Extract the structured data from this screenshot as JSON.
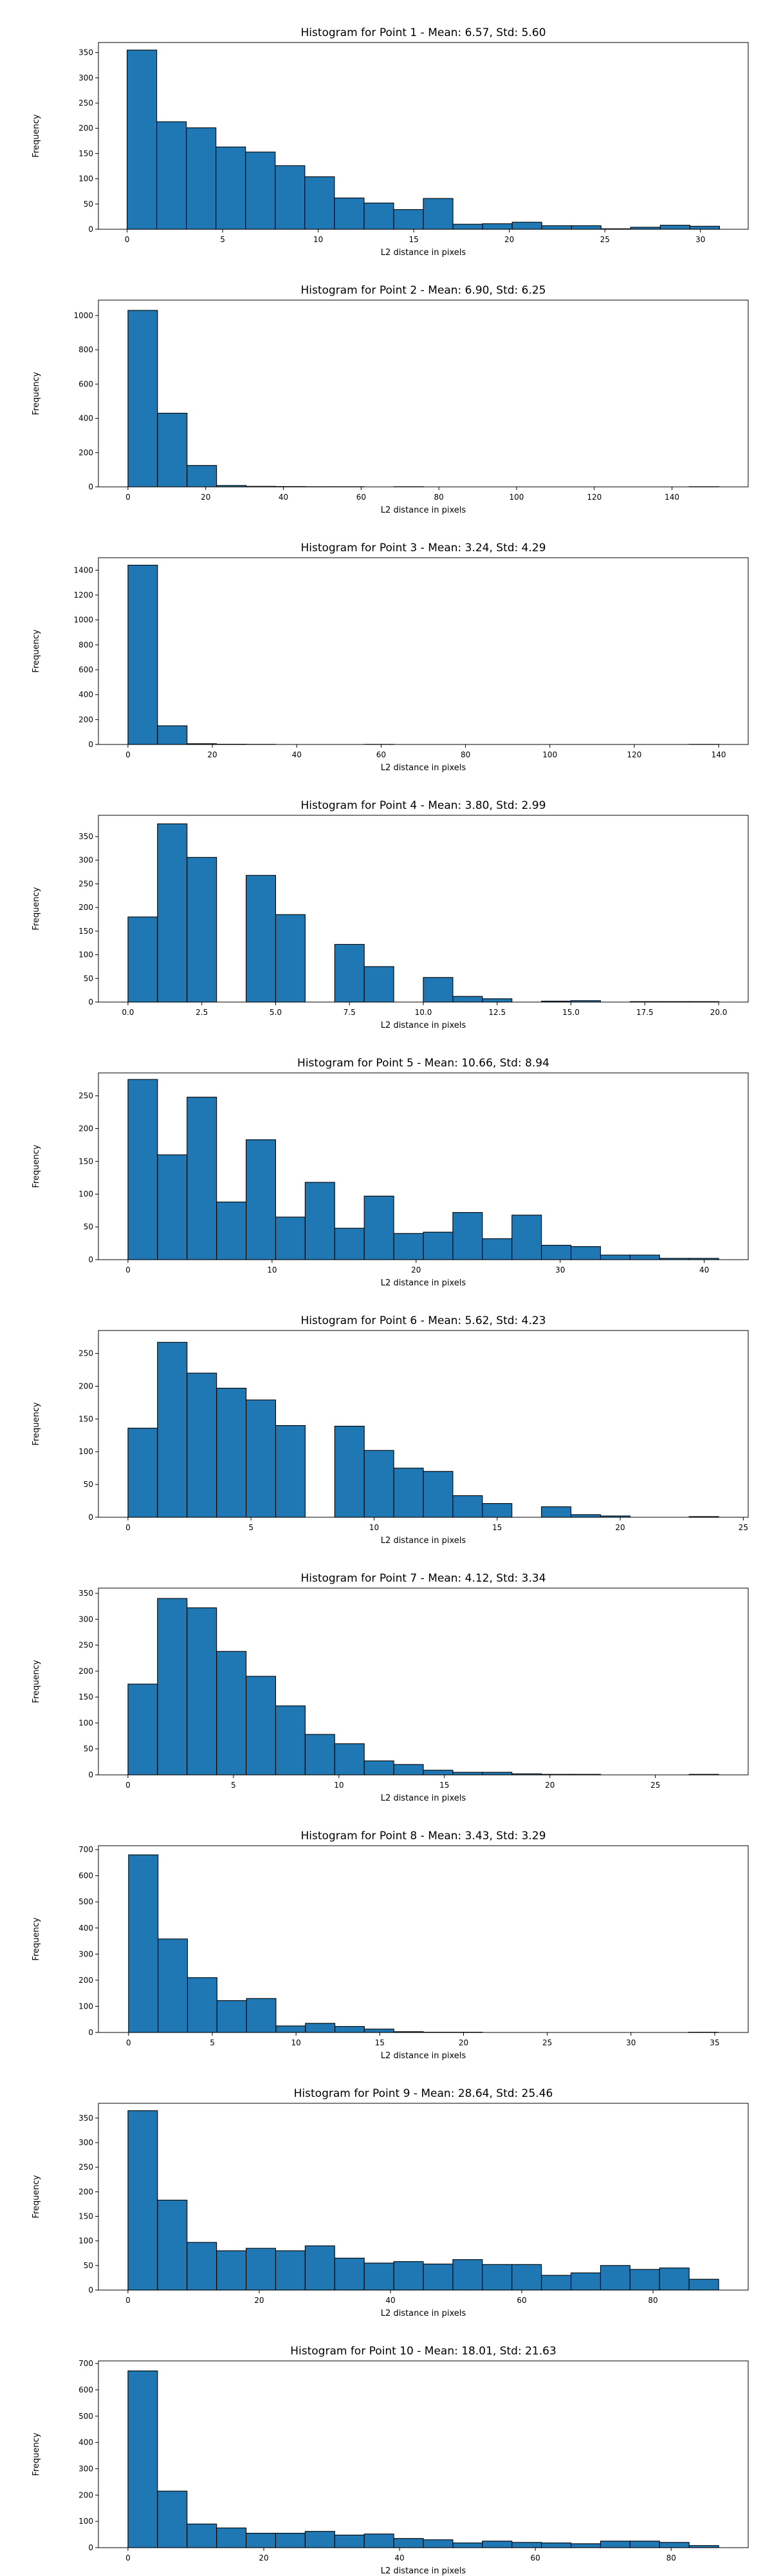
{
  "chart_data": [
    {
      "type": "bar",
      "title": "Histogram for Point 1 - Mean: 6.57, Std: 5.60",
      "xlabel": "L2 distance in pixels",
      "ylabel": "Frequency",
      "xlim": [
        -1.5,
        32.5
      ],
      "ylim": [
        0,
        370
      ],
      "xticks": [
        {
          "value": 0,
          "label": "0"
        },
        {
          "value": 5,
          "label": "5"
        },
        {
          "value": 10,
          "label": "10"
        },
        {
          "value": 15,
          "label": "15"
        },
        {
          "value": 20,
          "label": "20"
        },
        {
          "value": 25,
          "label": "25"
        },
        {
          "value": 30,
          "label": "30"
        }
      ],
      "yticks": [
        {
          "value": 0,
          "label": "0"
        },
        {
          "value": 50,
          "label": "50"
        },
        {
          "value": 100,
          "label": "100"
        },
        {
          "value": 150,
          "label": "150"
        },
        {
          "value": 200,
          "label": "200"
        },
        {
          "value": 250,
          "label": "250"
        },
        {
          "value": 300,
          "label": "300"
        },
        {
          "value": 350,
          "label": "350"
        }
      ],
      "bin_edges": [
        0,
        1.55,
        3.1,
        4.65,
        6.2,
        7.75,
        9.3,
        10.85,
        12.4,
        13.95,
        15.5,
        17.05,
        18.6,
        20.15,
        21.7,
        23.25,
        24.8,
        26.35,
        27.9,
        29.45,
        31.0
      ],
      "values": [
        355,
        213,
        201,
        163,
        153,
        126,
        104,
        62,
        52,
        39,
        61,
        10,
        11,
        14,
        7,
        7,
        1,
        4,
        8,
        6
      ],
      "color": "#1f77b4"
    },
    {
      "type": "bar",
      "title": "Histogram for Point 2 - Mean: 6.90, Std: 6.25",
      "xlabel": "L2 distance in pixels",
      "ylabel": "Frequency",
      "xlim": [
        -7.6,
        159.6
      ],
      "ylim": [
        0,
        1090
      ],
      "xticks": [
        {
          "value": 0,
          "label": "0"
        },
        {
          "value": 20,
          "label": "20"
        },
        {
          "value": 40,
          "label": "40"
        },
        {
          "value": 60,
          "label": "60"
        },
        {
          "value": 80,
          "label": "80"
        },
        {
          "value": 100,
          "label": "100"
        },
        {
          "value": 120,
          "label": "120"
        },
        {
          "value": 140,
          "label": "140"
        }
      ],
      "yticks": [
        {
          "value": 0,
          "label": "0"
        },
        {
          "value": 200,
          "label": "200"
        },
        {
          "value": 400,
          "label": "400"
        },
        {
          "value": 600,
          "label": "600"
        },
        {
          "value": 800,
          "label": "800"
        },
        {
          "value": 1000,
          "label": "1000"
        }
      ],
      "bin_edges": [
        0,
        7.6,
        15.2,
        22.8,
        30.4,
        38.0,
        45.6,
        53.2,
        60.8,
        68.4,
        76.0,
        83.6,
        91.2,
        98.8,
        106.4,
        114.0,
        121.6,
        129.2,
        136.8,
        144.4,
        152.0
      ],
      "values": [
        1030,
        430,
        125,
        8,
        3,
        2,
        1,
        1,
        0,
        1,
        0,
        0,
        0,
        0,
        0,
        0,
        0,
        0,
        0,
        1
      ],
      "color": "#1f77b4"
    },
    {
      "type": "bar",
      "title": "Histogram for Point 3 - Mean: 3.24, Std: 4.29",
      "xlabel": "L2 distance in pixels",
      "ylabel": "Frequency",
      "xlim": [
        -7.0,
        147.0
      ],
      "ylim": [
        0,
        1500
      ],
      "xticks": [
        {
          "value": 0,
          "label": "0"
        },
        {
          "value": 20,
          "label": "20"
        },
        {
          "value": 40,
          "label": "40"
        },
        {
          "value": 60,
          "label": "60"
        },
        {
          "value": 80,
          "label": "80"
        },
        {
          "value": 100,
          "label": "100"
        },
        {
          "value": 120,
          "label": "120"
        },
        {
          "value": 140,
          "label": "140"
        }
      ],
      "yticks": [
        {
          "value": 0,
          "label": "0"
        },
        {
          "value": 200,
          "label": "200"
        },
        {
          "value": 400,
          "label": "400"
        },
        {
          "value": 600,
          "label": "600"
        },
        {
          "value": 800,
          "label": "800"
        },
        {
          "value": 1000,
          "label": "1000"
        },
        {
          "value": 1200,
          "label": "1200"
        },
        {
          "value": 1400,
          "label": "1400"
        }
      ],
      "bin_edges": [
        0,
        7,
        14,
        21,
        28,
        35,
        42,
        49,
        56,
        63,
        70,
        77,
        84,
        91,
        98,
        105,
        112,
        119,
        126,
        133,
        140
      ],
      "values": [
        1440,
        150,
        6,
        2,
        1,
        0,
        0,
        0,
        1,
        0,
        0,
        0,
        0,
        0,
        0,
        0,
        0,
        0,
        0,
        1
      ],
      "color": "#1f77b4"
    },
    {
      "type": "bar",
      "title": "Histogram for Point 4 - Mean: 3.80, Std: 2.99",
      "xlabel": "L2 distance in pixels",
      "ylabel": "Frequency",
      "xlim": [
        -1.0,
        21.0
      ],
      "ylim": [
        0,
        395
      ],
      "xticks": [
        {
          "value": 0,
          "label": "0.0"
        },
        {
          "value": 2.5,
          "label": "2.5"
        },
        {
          "value": 5,
          "label": "5.0"
        },
        {
          "value": 7.5,
          "label": "7.5"
        },
        {
          "value": 10,
          "label": "10.0"
        },
        {
          "value": 12.5,
          "label": "12.5"
        },
        {
          "value": 15,
          "label": "15.0"
        },
        {
          "value": 17.5,
          "label": "17.5"
        },
        {
          "value": 20,
          "label": "20.0"
        }
      ],
      "yticks": [
        {
          "value": 0,
          "label": "0"
        },
        {
          "value": 50,
          "label": "50"
        },
        {
          "value": 100,
          "label": "100"
        },
        {
          "value": 150,
          "label": "150"
        },
        {
          "value": 200,
          "label": "200"
        },
        {
          "value": 250,
          "label": "250"
        },
        {
          "value": 300,
          "label": "300"
        },
        {
          "value": 350,
          "label": "350"
        }
      ],
      "bin_edges": [
        0,
        1,
        2,
        3,
        4,
        5,
        6,
        7,
        8,
        9,
        10,
        11,
        12,
        13,
        14,
        15,
        16,
        17,
        18,
        19,
        20
      ],
      "values": [
        180,
        377,
        306,
        0,
        268,
        185,
        0,
        122,
        75,
        0,
        52,
        12,
        7,
        0,
        2,
        3,
        0,
        1,
        1,
        1
      ],
      "color": "#1f77b4"
    },
    {
      "type": "bar",
      "title": "Histogram for Point 5 - Mean: 10.66, Std: 8.94",
      "xlabel": "L2 distance in pixels",
      "ylabel": "Frequency",
      "xlim": [
        -2.05,
        43.05
      ],
      "ylim": [
        0,
        285
      ],
      "xticks": [
        {
          "value": 0,
          "label": "0"
        },
        {
          "value": 10,
          "label": "10"
        },
        {
          "value": 20,
          "label": "20"
        },
        {
          "value": 30,
          "label": "30"
        },
        {
          "value": 40,
          "label": "40"
        }
      ],
      "yticks": [
        {
          "value": 0,
          "label": "0"
        },
        {
          "value": 50,
          "label": "50"
        },
        {
          "value": 100,
          "label": "100"
        },
        {
          "value": 150,
          "label": "150"
        },
        {
          "value": 200,
          "label": "200"
        },
        {
          "value": 250,
          "label": "250"
        }
      ],
      "bin_edges": [
        0,
        2.05,
        4.1,
        6.15,
        8.2,
        10.25,
        12.3,
        14.35,
        16.4,
        18.45,
        20.5,
        22.55,
        24.6,
        26.65,
        28.7,
        30.75,
        32.8,
        34.85,
        36.9,
        38.95,
        41.0
      ],
      "values": [
        275,
        160,
        248,
        88,
        183,
        65,
        118,
        48,
        97,
        40,
        42,
        72,
        32,
        68,
        22,
        20,
        7,
        7,
        2,
        2
      ],
      "color": "#1f77b4"
    },
    {
      "type": "bar",
      "title": "Histogram for Point 6 - Mean: 5.62, Std: 4.23",
      "xlabel": "L2 distance in pixels",
      "ylabel": "Frequency",
      "xlim": [
        -1.2,
        25.2
      ],
      "ylim": [
        0,
        285
      ],
      "xticks": [
        {
          "value": 0,
          "label": "0"
        },
        {
          "value": 5,
          "label": "5"
        },
        {
          "value": 10,
          "label": "10"
        },
        {
          "value": 15,
          "label": "15"
        },
        {
          "value": 20,
          "label": "20"
        },
        {
          "value": 25,
          "label": "25"
        }
      ],
      "yticks": [
        {
          "value": 0,
          "label": "0"
        },
        {
          "value": 50,
          "label": "50"
        },
        {
          "value": 100,
          "label": "100"
        },
        {
          "value": 150,
          "label": "150"
        },
        {
          "value": 200,
          "label": "200"
        },
        {
          "value": 250,
          "label": "250"
        }
      ],
      "bin_edges": [
        0,
        1.2,
        2.4,
        3.6,
        4.8,
        6.0,
        7.2,
        8.4,
        9.6,
        10.8,
        12.0,
        13.2,
        14.4,
        15.6,
        16.8,
        18.0,
        19.2,
        20.4,
        21.6,
        22.8,
        24.0
      ],
      "values": [
        136,
        267,
        220,
        197,
        179,
        140,
        0,
        139,
        102,
        75,
        70,
        33,
        21,
        0,
        16,
        4,
        2,
        0,
        0,
        1
      ],
      "color": "#1f77b4"
    },
    {
      "type": "bar",
      "title": "Histogram for Point 7 - Mean: 4.12, Std: 3.34",
      "xlabel": "L2 distance in pixels",
      "ylabel": "Frequency",
      "xlim": [
        -1.4,
        29.4
      ],
      "ylim": [
        0,
        360
      ],
      "xticks": [
        {
          "value": 0,
          "label": "0"
        },
        {
          "value": 5,
          "label": "5"
        },
        {
          "value": 10,
          "label": "10"
        },
        {
          "value": 15,
          "label": "15"
        },
        {
          "value": 20,
          "label": "20"
        },
        {
          "value": 25,
          "label": "25"
        }
      ],
      "yticks": [
        {
          "value": 0,
          "label": "0"
        },
        {
          "value": 50,
          "label": "50"
        },
        {
          "value": 100,
          "label": "100"
        },
        {
          "value": 150,
          "label": "150"
        },
        {
          "value": 200,
          "label": "200"
        },
        {
          "value": 250,
          "label": "250"
        },
        {
          "value": 300,
          "label": "300"
        },
        {
          "value": 350,
          "label": "350"
        }
      ],
      "bin_edges": [
        0,
        1.4,
        2.8,
        4.2,
        5.6,
        7.0,
        8.4,
        9.8,
        11.2,
        12.6,
        14.0,
        15.4,
        16.8,
        18.2,
        19.6,
        21.0,
        22.4,
        23.8,
        25.2,
        26.6,
        28.0
      ],
      "values": [
        175,
        340,
        322,
        238,
        190,
        133,
        78,
        60,
        27,
        20,
        9,
        5,
        5,
        2,
        1,
        1,
        0,
        0,
        0,
        1
      ],
      "color": "#1f77b4"
    },
    {
      "type": "bar",
      "title": "Histogram for Point 8 - Mean: 3.43, Std: 3.29",
      "xlabel": "L2 distance in pixels",
      "ylabel": "Frequency",
      "xlim": [
        -1.8,
        37.0
      ],
      "ylim": [
        0,
        715
      ],
      "xticks": [
        {
          "value": 0,
          "label": "0"
        },
        {
          "value": 5,
          "label": "5"
        },
        {
          "value": 10,
          "label": "10"
        },
        {
          "value": 15,
          "label": "15"
        },
        {
          "value": 20,
          "label": "20"
        },
        {
          "value": 25,
          "label": "25"
        },
        {
          "value": 30,
          "label": "30"
        },
        {
          "value": 35,
          "label": "35"
        }
      ],
      "yticks": [
        {
          "value": 0,
          "label": "0"
        },
        {
          "value": 100,
          "label": "100"
        },
        {
          "value": 200,
          "label": "200"
        },
        {
          "value": 300,
          "label": "300"
        },
        {
          "value": 400,
          "label": "400"
        },
        {
          "value": 500,
          "label": "500"
        },
        {
          "value": 600,
          "label": "600"
        },
        {
          "value": 700,
          "label": "700"
        }
      ],
      "bin_edges": [
        0,
        1.76,
        3.52,
        5.28,
        7.04,
        8.8,
        10.56,
        12.32,
        14.08,
        15.84,
        17.6,
        19.36,
        21.12,
        22.88,
        24.64,
        26.4,
        28.16,
        29.92,
        31.68,
        33.44,
        35.2
      ],
      "values": [
        680,
        358,
        210,
        122,
        130,
        25,
        35,
        23,
        13,
        3,
        1,
        1,
        0,
        0,
        0,
        0,
        0,
        0,
        0,
        1
      ],
      "color": "#1f77b4"
    },
    {
      "type": "bar",
      "title": "Histogram for Point 9 - Mean: 28.64, Std: 25.46",
      "xlabel": "L2 distance in pixels",
      "ylabel": "Frequency",
      "xlim": [
        -4.5,
        94.5
      ],
      "ylim": [
        0,
        380
      ],
      "xticks": [
        {
          "value": 0,
          "label": "0"
        },
        {
          "value": 20,
          "label": "20"
        },
        {
          "value": 40,
          "label": "40"
        },
        {
          "value": 60,
          "label": "60"
        },
        {
          "value": 80,
          "label": "80"
        }
      ],
      "yticks": [
        {
          "value": 0,
          "label": "0"
        },
        {
          "value": 50,
          "label": "50"
        },
        {
          "value": 100,
          "label": "100"
        },
        {
          "value": 150,
          "label": "150"
        },
        {
          "value": 200,
          "label": "200"
        },
        {
          "value": 250,
          "label": "250"
        },
        {
          "value": 300,
          "label": "300"
        },
        {
          "value": 350,
          "label": "350"
        }
      ],
      "bin_edges": [
        0,
        4.5,
        9,
        13.5,
        18,
        22.5,
        27,
        31.5,
        36,
        40.5,
        45,
        49.5,
        54,
        58.5,
        63,
        67.5,
        72,
        76.5,
        81,
        85.5,
        90
      ],
      "values": [
        365,
        183,
        97,
        80,
        85,
        80,
        90,
        65,
        55,
        58,
        53,
        62,
        52,
        52,
        30,
        35,
        50,
        42,
        45,
        22
      ],
      "color": "#1f77b4"
    },
    {
      "type": "bar",
      "title": "Histogram for Point 10 - Mean: 18.01, Std: 21.63",
      "xlabel": "L2 distance in pixels",
      "ylabel": "Frequency",
      "xlim": [
        -4.35,
        91.35
      ],
      "ylim": [
        0,
        710
      ],
      "xticks": [
        {
          "value": 0,
          "label": "0"
        },
        {
          "value": 20,
          "label": "20"
        },
        {
          "value": 40,
          "label": "40"
        },
        {
          "value": 60,
          "label": "60"
        },
        {
          "value": 80,
          "label": "80"
        }
      ],
      "yticks": [
        {
          "value": 0,
          "label": "0"
        },
        {
          "value": 100,
          "label": "100"
        },
        {
          "value": 200,
          "label": "200"
        },
        {
          "value": 300,
          "label": "300"
        },
        {
          "value": 400,
          "label": "400"
        },
        {
          "value": 500,
          "label": "500"
        },
        {
          "value": 600,
          "label": "600"
        },
        {
          "value": 700,
          "label": "700"
        }
      ],
      "bin_edges": [
        0,
        4.35,
        8.7,
        13.05,
        17.4,
        21.75,
        26.1,
        30.45,
        34.8,
        39.15,
        43.5,
        47.85,
        52.2,
        56.55,
        60.9,
        65.25,
        69.6,
        73.95,
        78.3,
        82.65,
        87.0
      ],
      "values": [
        672,
        215,
        90,
        75,
        55,
        55,
        62,
        48,
        52,
        35,
        30,
        18,
        25,
        20,
        18,
        15,
        25,
        25,
        20,
        8
      ],
      "color": "#1f77b4"
    }
  ]
}
